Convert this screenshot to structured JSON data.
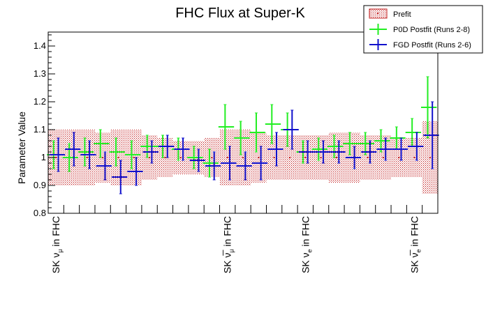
{
  "chart_data": {
    "type": "scatter",
    "title": "FHC Flux at Super-K",
    "ylabel": "Parameter Value",
    "xlabel": "",
    "ylim": [
      0.8,
      1.45
    ],
    "yticks": [
      "0.8",
      "0.9",
      "1",
      "1.1",
      "1.2",
      "1.3",
      "1.4"
    ],
    "xlim": [
      0,
      25
    ],
    "grid": false,
    "legend_position": "top-right",
    "legend": [
      "Prefit",
      "P0D Postfit (Runs 2-8)",
      "FGD Postfit (Runs 2-6)"
    ],
    "category_labels": [
      {
        "x": 0.5,
        "prefix": "SK ",
        "sym": "ν",
        "bar": false,
        "sub": "μ",
        "suffix": " in FHC"
      },
      {
        "x": 11.5,
        "prefix": "SK ",
        "sym": "ν",
        "bar": true,
        "sub": "μ",
        "suffix": " in FHC"
      },
      {
        "x": 16.5,
        "prefix": "SK ",
        "sym": "ν",
        "bar": false,
        "sub": "e",
        "suffix": " in FHC"
      },
      {
        "x": 23.5,
        "prefix": "SK ",
        "sym": "ν",
        "bar": true,
        "sub": "e",
        "suffix": " in FHC"
      }
    ],
    "bins": [
      {
        "x": 0.5,
        "w": 1.0
      },
      {
        "x": 1.5,
        "w": 1.0
      },
      {
        "x": 2.5,
        "w": 1.0
      },
      {
        "x": 3.5,
        "w": 1.0
      },
      {
        "x": 4.5,
        "w": 1.0
      },
      {
        "x": 5.5,
        "w": 1.0
      },
      {
        "x": 6.5,
        "w": 1.0
      },
      {
        "x": 7.5,
        "w": 1.0
      },
      {
        "x": 8.5,
        "w": 1.0
      },
      {
        "x": 9.5,
        "w": 1.0
      },
      {
        "x": 10.5,
        "w": 1.0
      },
      {
        "x": 11.5,
        "w": 1.0
      },
      {
        "x": 12.5,
        "w": 1.0
      },
      {
        "x": 13.5,
        "w": 1.0
      },
      {
        "x": 14.5,
        "w": 1.0
      },
      {
        "x": 15.5,
        "w": 1.0
      },
      {
        "x": 16.5,
        "w": 1.0
      },
      {
        "x": 17.5,
        "w": 1.0
      },
      {
        "x": 18.5,
        "w": 1.0
      },
      {
        "x": 19.5,
        "w": 1.0
      },
      {
        "x": 20.5,
        "w": 1.0
      },
      {
        "x": 21.5,
        "w": 1.0
      },
      {
        "x": 22.5,
        "w": 1.0
      },
      {
        "x": 23.5,
        "w": 1.0
      },
      {
        "x": 24.5,
        "w": 1.0
      }
    ],
    "series": [
      {
        "name": "Prefit",
        "color": "#c0181a",
        "style": "band",
        "values": [
          1.0,
          1.0,
          1.0,
          1.0,
          1.0,
          1.0,
          1.0,
          1.0,
          1.0,
          1.0,
          1.0,
          1.0,
          1.0,
          1.0,
          1.0,
          1.0,
          1.0,
          1.0,
          1.0,
          1.0,
          1.0,
          1.0,
          1.0,
          1.0,
          1.0
        ],
        "errors": [
          0.1,
          0.1,
          0.1,
          0.09,
          0.1,
          0.1,
          0.08,
          0.07,
          0.06,
          0.06,
          0.07,
          0.1,
          0.1,
          0.09,
          0.08,
          0.08,
          0.08,
          0.08,
          0.09,
          0.09,
          0.08,
          0.08,
          0.07,
          0.07,
          0.13
        ]
      },
      {
        "name": "P0D Postfit (Runs 2-8)",
        "color": "#22ee22",
        "style": "crosses",
        "values": [
          1.01,
          1.0,
          1.02,
          1.05,
          1.02,
          1.01,
          1.04,
          1.04,
          1.03,
          1.0,
          0.98,
          1.11,
          1.07,
          1.09,
          1.12,
          1.1,
          1.02,
          1.03,
          1.04,
          1.05,
          1.05,
          1.06,
          1.07,
          1.09,
          1.18
        ],
        "errors": [
          0.05,
          0.05,
          0.05,
          0.05,
          0.05,
          0.05,
          0.04,
          0.04,
          0.04,
          0.04,
          0.05,
          0.08,
          0.06,
          0.07,
          0.07,
          0.06,
          0.04,
          0.04,
          0.04,
          0.04,
          0.04,
          0.04,
          0.04,
          0.05,
          0.11
        ]
      },
      {
        "name": "FGD Postfit (Runs 2-6)",
        "color": "#1111cc",
        "style": "crosses",
        "values": [
          1.01,
          1.03,
          1.01,
          0.97,
          0.93,
          0.95,
          1.02,
          1.04,
          1.03,
          0.99,
          0.97,
          0.98,
          0.97,
          0.98,
          1.03,
          1.1,
          1.02,
          1.02,
          1.02,
          1.0,
          1.02,
          1.03,
          1.03,
          1.04,
          1.08
        ],
        "errors": [
          0.06,
          0.06,
          0.05,
          0.05,
          0.06,
          0.05,
          0.04,
          0.04,
          0.04,
          0.04,
          0.05,
          0.06,
          0.05,
          0.06,
          0.06,
          0.07,
          0.04,
          0.04,
          0.04,
          0.04,
          0.04,
          0.04,
          0.04,
          0.05,
          0.12
        ]
      }
    ]
  }
}
